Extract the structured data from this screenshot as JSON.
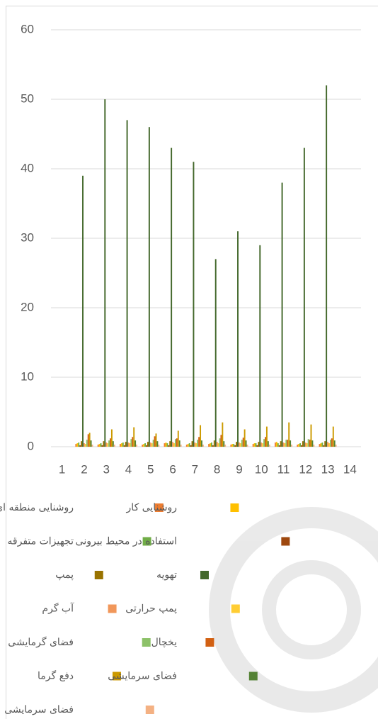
{
  "chart_data": {
    "type": "bar",
    "categories": [
      "1",
      "2",
      "3",
      "4",
      "5",
      "6",
      "7",
      "8",
      "9",
      "10",
      "11",
      "12",
      "13",
      "14"
    ],
    "ylim": [
      0,
      60
    ],
    "yticks": [
      0,
      10,
      20,
      30,
      40,
      50,
      60
    ],
    "grid": true,
    "series": [
      {
        "name": "روشنایی منطقه ای",
        "color": "#ED7D31",
        "values": [
          0,
          0.4,
          0.3,
          0.4,
          0.3,
          0.5,
          0.3,
          0.4,
          0.3,
          0.4,
          0.6,
          0.3,
          0.4,
          0
        ]
      },
      {
        "name": "روشنایی کار",
        "color": "#FFC000",
        "values": [
          0,
          0.5,
          0.4,
          0.5,
          0.4,
          0.6,
          0.4,
          0.5,
          0.4,
          0.5,
          0.7,
          0.4,
          0.5,
          0
        ]
      },
      {
        "name": "تجهیزات متفرقه",
        "color": "#70AD47",
        "values": [
          0,
          0.6,
          0.5,
          0.6,
          0.5,
          0.5,
          0.5,
          0.6,
          0.4,
          0.5,
          0.5,
          0.5,
          0.6,
          0
        ]
      },
      {
        "name": "استفاده در محیط بیرونی",
        "color": "#9E480E",
        "values": [
          0,
          0.2,
          0.2,
          0.2,
          0.2,
          0.2,
          0.2,
          0.2,
          0.2,
          0.2,
          0.2,
          0.2,
          0.2,
          0
        ]
      },
      {
        "name": "پمپ",
        "color": "#997300",
        "values": [
          0,
          0.8,
          0.8,
          0.7,
          0.7,
          0.8,
          0.8,
          0.9,
          0.7,
          0.7,
          0.8,
          0.8,
          0.8,
          0
        ]
      },
      {
        "name": "تهویه",
        "color": "#43682B",
        "values": [
          0,
          39,
          50,
          47,
          46,
          43,
          41,
          27,
          31,
          29,
          38,
          43,
          52,
          0
        ]
      },
      {
        "name": "آب گرم",
        "color": "#F1975A",
        "values": [
          0,
          0.5,
          0.6,
          0.6,
          0.6,
          0.7,
          0.6,
          0.7,
          0.6,
          0.6,
          0.6,
          0.6,
          0.7,
          0
        ]
      },
      {
        "name": "پمپ حرارتی",
        "color": "#FFCD33",
        "values": [
          0,
          0.4,
          0.5,
          0.5,
          0.5,
          0.5,
          0.5,
          0.5,
          0.5,
          0.5,
          0.5,
          0.5,
          0.5,
          0
        ]
      },
      {
        "name": "فضای گرمایشی",
        "color": "#8CC168",
        "values": [
          0,
          1.0,
          0.9,
          1.1,
          1.0,
          1.1,
          1.0,
          1.2,
          1.0,
          1.1,
          1.0,
          1.1,
          1.0,
          0
        ]
      },
      {
        "name": "یخچال",
        "color": "#D26012",
        "values": [
          0,
          1.8,
          1.2,
          1.4,
          1.5,
          1.2,
          1.4,
          1.7,
          1.3,
          1.4,
          1.0,
          1.0,
          1.2,
          0
        ]
      },
      {
        "name": "دفع گرما",
        "color": "#CC9A00",
        "values": [
          0,
          2.0,
          2.5,
          2.8,
          1.9,
          2.3,
          3.1,
          3.5,
          2.5,
          2.9,
          3.5,
          3.2,
          2.9,
          0
        ]
      },
      {
        "name": "فضای سرمایشی",
        "color": "#548235",
        "values": [
          0,
          0.9,
          0.8,
          0.9,
          0.8,
          0.9,
          0.9,
          0.8,
          0.9,
          0.8,
          0.9,
          0.9,
          0.9,
          0
        ]
      },
      {
        "name": "فضای سرمایشی",
        "color": "#F4B183",
        "values": [
          0,
          0.3,
          0.3,
          0.3,
          0.3,
          0.3,
          0.3,
          0.3,
          0.3,
          0.3,
          0.3,
          0.3,
          0.3,
          0
        ]
      }
    ]
  }
}
